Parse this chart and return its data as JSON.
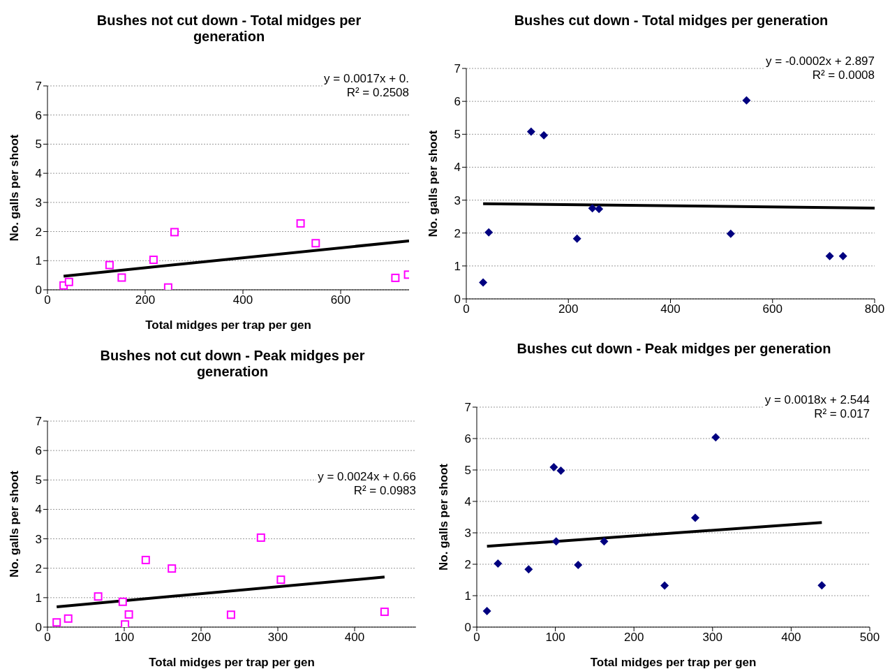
{
  "chart_data": [
    {
      "type": "scatter",
      "title": "Bushes not cut down - Total midges per generation",
      "xlabel": "Total midges per trap per gen",
      "ylabel": "No. galls per shoot",
      "xlim": [
        0,
        740
      ],
      "xticks": [
        0,
        200,
        400,
        600
      ],
      "ylim": [
        0,
        7
      ],
      "yticks": [
        0,
        1,
        2,
        3,
        4,
        5,
        6,
        7
      ],
      "grid": "y",
      "marker": "square",
      "annotations": [
        "y = 0.0017x + 0.",
        "R² = 0.2508"
      ],
      "series": [
        {
          "color": "#ff00ff",
          "x": [
            33,
            44,
            127,
            152,
            217,
            247,
            260,
            518,
            549,
            712,
            738
          ],
          "values": [
            0.15,
            0.27,
            0.85,
            0.42,
            1.03,
            0.08,
            1.98,
            2.28,
            1.6,
            0.41,
            0.52
          ]
        },
        {
          "type": "line",
          "color": "#000000",
          "marker": "none",
          "x": [
            33,
            740
          ],
          "values": [
            0.47,
            1.68
          ]
        }
      ]
    },
    {
      "type": "scatter",
      "title": "Bushes cut down - Total midges per generation",
      "ylabel": "No. galls per shoot",
      "xlim": [
        0,
        800
      ],
      "xticks": [
        0,
        200,
        400,
        600,
        800
      ],
      "ylim": [
        0,
        7
      ],
      "yticks": [
        0,
        1,
        2,
        3,
        4,
        5,
        6,
        7
      ],
      "grid": "y",
      "marker": "diamond",
      "annotations": [
        "y = -0.0002x + 2.897",
        "R² = 0.0008"
      ],
      "series": [
        {
          "color": "#000080",
          "x": [
            33,
            44,
            127,
            152,
            217,
            247,
            260,
            518,
            549,
            712,
            738
          ],
          "values": [
            0.5,
            2.02,
            5.08,
            4.97,
            1.83,
            2.75,
            2.73,
            1.98,
            6.03,
            1.3,
            1.3
          ]
        },
        {
          "type": "line",
          "color": "#000000",
          "marker": "none",
          "x": [
            33,
            800
          ],
          "values": [
            2.89,
            2.76
          ]
        }
      ]
    },
    {
      "type": "scatter",
      "title": "Bushes not cut down - Peak midges per generation",
      "xlabel": "Total midges per trap per gen",
      "ylabel": "No. galls per shoot",
      "xlim": [
        0,
        480
      ],
      "xticks": [
        0,
        100,
        200,
        300,
        400
      ],
      "ylim": [
        0,
        7
      ],
      "yticks": [
        0,
        1,
        2,
        3,
        4,
        5,
        6,
        7
      ],
      "grid": "y",
      "marker": "square",
      "annotations": [
        "y = 0.0024x + 0.66",
        "R² = 0.0983"
      ],
      "series": [
        {
          "color": "#ff00ff",
          "x": [
            12,
            27,
            66,
            98,
            106,
            101,
            128,
            162,
            239,
            278,
            304,
            439
          ],
          "values": [
            0.16,
            0.29,
            1.04,
            0.86,
            0.43,
            0.09,
            2.28,
            1.99,
            0.42,
            3.04,
            1.61,
            0.52
          ]
        },
        {
          "type": "line",
          "color": "#000000",
          "marker": "none",
          "x": [
            12,
            439
          ],
          "values": [
            0.69,
            1.7
          ]
        }
      ]
    },
    {
      "type": "scatter",
      "title": "Bushes cut down - Peak midges per generation",
      "xlabel": "Total midges per trap per gen",
      "ylabel": "No. galls per shoot",
      "xlim": [
        0,
        500
      ],
      "xticks": [
        0,
        100,
        200,
        300,
        400,
        500
      ],
      "ylim": [
        0,
        7
      ],
      "yticks": [
        0,
        1,
        2,
        3,
        4,
        5,
        6,
        7
      ],
      "grid": "y",
      "marker": "diamond",
      "annotations": [
        "y = 0.0018x + 2.544",
        "R² = 0.017"
      ],
      "series": [
        {
          "color": "#000080",
          "x": [
            13,
            27,
            66,
            98,
            107,
            101,
            129,
            162,
            239,
            278,
            304,
            439
          ],
          "values": [
            0.51,
            2.02,
            1.84,
            5.09,
            4.98,
            2.73,
            1.98,
            2.73,
            1.32,
            3.48,
            6.04,
            1.33
          ]
        },
        {
          "type": "line",
          "color": "#000000",
          "marker": "none",
          "x": [
            13,
            439
          ],
          "values": [
            2.57,
            3.33
          ]
        }
      ]
    }
  ]
}
